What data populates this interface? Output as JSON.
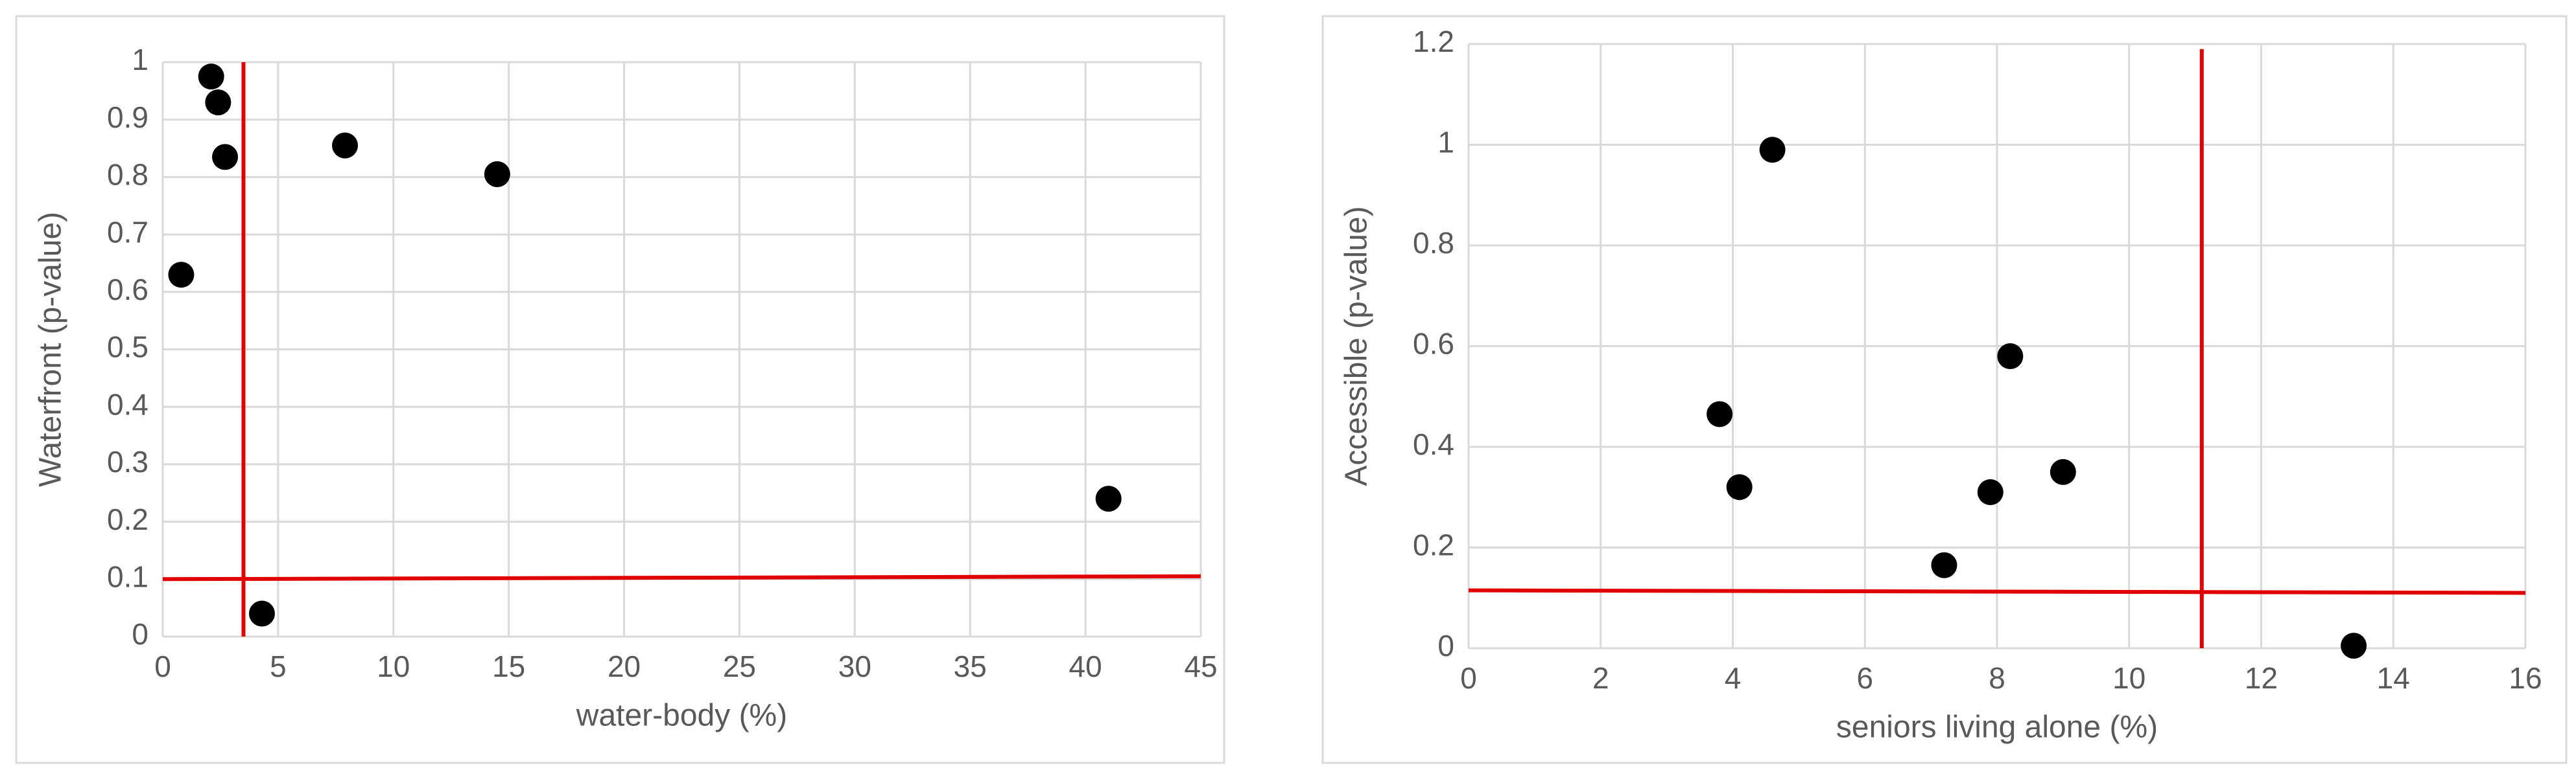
{
  "chart_data": [
    {
      "type": "scatter",
      "x_label": "water-body (%)",
      "y_label": "Waterfront (p-value)",
      "x": [
        0.8,
        2.1,
        2.4,
        2.7,
        7.9,
        14.5,
        4.3,
        41
      ],
      "values": [
        0.63,
        0.975,
        0.93,
        0.835,
        0.855,
        0.805,
        0.04,
        0.24
      ],
      "color": "#000000",
      "xlim": [
        0,
        45
      ],
      "xticks": [
        0,
        5,
        10,
        15,
        20,
        25,
        30,
        35,
        40,
        45
      ],
      "ylim": [
        0,
        1
      ],
      "yticks": [
        0,
        0.1,
        0.2,
        0.3,
        0.4,
        0.5,
        0.6,
        0.7,
        0.8,
        0.9,
        1
      ],
      "grid": true,
      "lines": [
        {
          "color": "#e00000",
          "x": [
            3.5,
            3.5
          ],
          "values": [
            1,
            0
          ]
        },
        {
          "color": "#e00000",
          "x": [
            0,
            45
          ],
          "values": [
            0.1,
            0.105
          ]
        }
      ]
    },
    {
      "type": "scatter",
      "x_label": "seniors living alone (%)",
      "y_label": "Accessible (p-value)",
      "x": [
        4.6,
        3.8,
        4.1,
        8.2,
        7.9,
        9.0,
        7.2,
        13.4
      ],
      "values": [
        0.99,
        0.465,
        0.32,
        0.58,
        0.31,
        0.35,
        0.165,
        0.005
      ],
      "color": "#000000",
      "xlim": [
        0,
        16
      ],
      "xticks": [
        0,
        2,
        4,
        6,
        8,
        10,
        12,
        14,
        16
      ],
      "ylim": [
        0,
        1.2
      ],
      "yticks": [
        0,
        0.2,
        0.4,
        0.6,
        0.8,
        1,
        1.2
      ],
      "grid": true,
      "lines": [
        {
          "color": "#e00000",
          "x": [
            11.1,
            11.1
          ],
          "values": [
            1.19,
            0
          ]
        },
        {
          "color": "#e00000",
          "x": [
            0,
            16
          ],
          "values": [
            0.115,
            0.11
          ]
        }
      ]
    }
  ]
}
